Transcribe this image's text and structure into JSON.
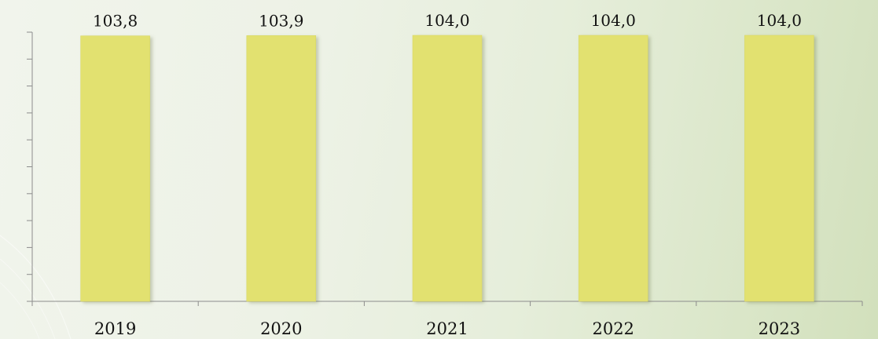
{
  "chart_data": {
    "type": "bar",
    "categories": [
      "2019",
      "2020",
      "2021",
      "2022",
      "2023"
    ],
    "values": [
      103.8,
      103.9,
      104.0,
      104.0,
      104.0
    ],
    "data_labels": [
      "103,8",
      "103,9",
      "104,0",
      "104,0",
      "104,0"
    ],
    "title": "",
    "xlabel": "",
    "ylabel": "",
    "ylim": [
      0,
      104
    ],
    "y_tick_count": 10,
    "y_tick_labels_visible": false,
    "grid": false,
    "legend": "none",
    "colors": {
      "bar": "#e2e170",
      "bar_edge": "#d8d65e",
      "axis": "#8c8c8c",
      "text": "#111111"
    }
  }
}
